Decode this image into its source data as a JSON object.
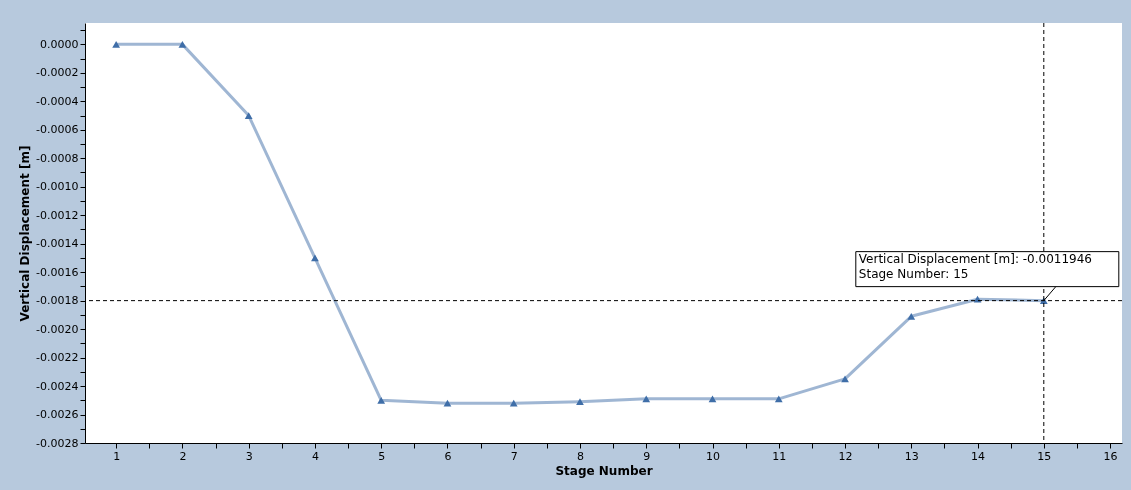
{
  "chart_data": {
    "type": "line",
    "xlabel": "Stage Number",
    "ylabel": "Vertical Displacement [m]",
    "x": [
      1,
      2,
      3,
      4,
      5,
      6,
      7,
      8,
      9,
      10,
      11,
      12,
      13,
      14,
      15
    ],
    "series": [
      {
        "color": "#3f6ea8",
        "values": [
          0.0,
          0.0,
          -0.0005,
          -0.0015,
          -0.0025,
          -0.00252,
          -0.00252,
          -0.00251,
          -0.00249,
          -0.00249,
          -0.00249,
          -0.00235,
          -0.00191,
          -0.00179,
          -0.0018
        ]
      }
    ],
    "marker": "triangle",
    "line_style": "solid",
    "grid": false,
    "xlim": [
      0.53,
      16.18
    ],
    "ylim": [
      -0.0028,
      0.00015
    ],
    "xticks": [
      1,
      {
        "value": 1.5,
        "label": null
      },
      2,
      {
        "value": 2.5,
        "label": null
      },
      3,
      {
        "value": 3.5,
        "label": null
      },
      4,
      {
        "value": 4.5,
        "label": null
      },
      5,
      {
        "value": 5.5,
        "label": null
      },
      6,
      {
        "value": 6.5,
        "label": null
      },
      7,
      {
        "value": 7.5,
        "label": null
      },
      8,
      {
        "value": 8.5,
        "label": null
      },
      9,
      {
        "value": 9.5,
        "label": null
      },
      10,
      {
        "value": 10.5,
        "label": null
      },
      11,
      {
        "value": 11.5,
        "label": null
      },
      12,
      {
        "value": 12.5,
        "label": null
      },
      13,
      {
        "value": 13.5,
        "label": null
      },
      14,
      {
        "value": 14.5,
        "label": null
      },
      15,
      {
        "value": 15.5,
        "label": null
      },
      16
    ],
    "yticks": [
      {
        "value": 0.0001,
        "label": null
      },
      {
        "value": 0,
        "label": "0.0000"
      },
      {
        "value": -0.0001,
        "label": null
      },
      {
        "value": -0.0002,
        "label": "-0.0002"
      },
      {
        "value": -0.0003,
        "label": null
      },
      {
        "value": -0.0004,
        "label": "-0.0004"
      },
      {
        "value": -0.0005,
        "label": null
      },
      {
        "value": -0.0006,
        "label": "-0.0006"
      },
      {
        "value": -0.0007,
        "label": null
      },
      {
        "value": -0.0008,
        "label": "-0.0008"
      },
      {
        "value": -0.0009,
        "label": null
      },
      {
        "value": -0.001,
        "label": "-0.0010"
      },
      {
        "value": -0.0011,
        "label": null
      },
      {
        "value": -0.0012,
        "label": "-0.0012"
      },
      {
        "value": -0.0013,
        "label": null
      },
      {
        "value": -0.0014,
        "label": "-0.0014"
      },
      {
        "value": -0.0015,
        "label": null
      },
      {
        "value": -0.0016,
        "label": "-0.0016"
      },
      {
        "value": -0.0017,
        "label": null
      },
      {
        "value": -0.0018,
        "label": "-0.0018"
      },
      {
        "value": -0.0019,
        "label": null
      },
      {
        "value": -0.002,
        "label": "-0.0020"
      },
      {
        "value": -0.0021,
        "label": null
      },
      {
        "value": -0.0022,
        "label": "-0.0022"
      },
      {
        "value": -0.0023,
        "label": null
      },
      {
        "value": -0.0024,
        "label": "-0.0024"
      },
      {
        "value": -0.0025,
        "label": null
      },
      {
        "value": -0.0026,
        "label": "-0.0026"
      },
      {
        "value": -0.0027,
        "label": null
      },
      {
        "value": -0.0028,
        "label": "-0.0028"
      }
    ],
    "ref_lines": [
      {
        "axis": "x",
        "value": 15,
        "color": "#000000",
        "line_style": "dashed"
      },
      {
        "axis": "y",
        "value": -0.0018,
        "color": "#000000",
        "line_style": "dashed"
      }
    ],
    "annotations": [
      {
        "text": "Vertical Displacement [m]: -0.0011946\nStage Number: 15",
        "x": 15,
        "y": -0.0018
      }
    ]
  }
}
